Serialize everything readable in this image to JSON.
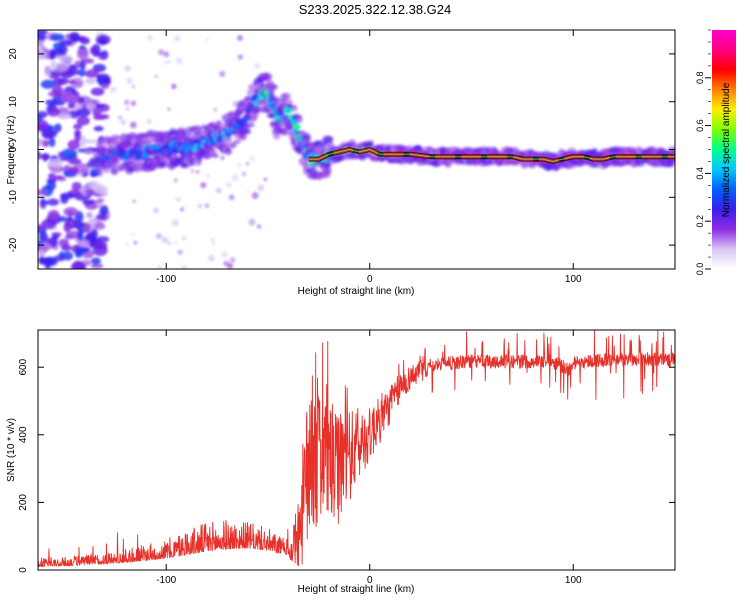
{
  "title": "S233.2025.322.12.38.G24",
  "chart_data": [
    {
      "type": "heatmap",
      "panel": "top",
      "xlabel": "Height of straight line (km)",
      "ylabel": "Frequency (Hz)",
      "xlim": [
        -163,
        150
      ],
      "ylim": [
        -25,
        25
      ],
      "xticks": [
        -100,
        0,
        100
      ],
      "yticks": [
        -20,
        -10,
        0,
        10,
        20
      ],
      "colorbar": {
        "label": "Normalized spectral amplitude",
        "range": [
          0,
          1
        ],
        "ticks": [
          0.0,
          0.2,
          0.4,
          0.6,
          0.8
        ],
        "tick_labels": [
          "0.0",
          "0.2",
          "0.4",
          "0.6",
          "0.8"
        ],
        "colormap": [
          "#ffffff",
          "#d9c8f5",
          "#8a2be2",
          "#3a1ef0",
          "#0060ff",
          "#00c8ff",
          "#00ff90",
          "#80ff00",
          "#ffee00",
          "#ff8000",
          "#ff0000",
          "#ff0080",
          "#ff00cc"
        ]
      },
      "ridge": {
        "x": [
          -133,
          -120,
          -110,
          -100,
          -90,
          -80,
          -70,
          -62,
          -58,
          -55,
          -50,
          -45,
          -40,
          -35,
          -30,
          -25,
          -20,
          -15,
          -10,
          -5,
          0,
          5,
          10,
          20,
          30,
          40,
          50,
          60,
          70,
          75,
          80,
          85,
          90,
          95,
          100,
          105,
          110,
          115,
          120,
          130,
          140,
          148
        ],
        "freq": [
          -1.5,
          -0.8,
          -0.5,
          0,
          0.5,
          1.5,
          3,
          6,
          9,
          11,
          12,
          6,
          8,
          3,
          -2,
          -2,
          -1,
          -0.5,
          0,
          -0.5,
          0,
          -1,
          -1,
          -1,
          -1.5,
          -1.5,
          -1.5,
          -1.5,
          -1.5,
          -2,
          -2,
          -2,
          -2.5,
          -2,
          -1.5,
          -1.5,
          -2,
          -2,
          -1.5,
          -1.5,
          -1.5,
          -1.5
        ],
        "amp": [
          0.25,
          0.3,
          0.3,
          0.3,
          0.35,
          0.35,
          0.35,
          0.3,
          0.35,
          0.4,
          0.45,
          0.4,
          0.4,
          0.45,
          0.4,
          0.45,
          0.5,
          0.55,
          0.6,
          0.65,
          0.6,
          0.7,
          0.8,
          0.85,
          0.9,
          0.9,
          0.9,
          0.85,
          0.85,
          0.9,
          0.9,
          0.85,
          0.85,
          0.9,
          0.9,
          0.85,
          0.9,
          0.9,
          0.9,
          0.85,
          0.85,
          0.85
        ]
      },
      "noise_region": {
        "x_range": [
          -163,
          -130
        ],
        "freq_range": [
          -25,
          25
        ]
      }
    },
    {
      "type": "line",
      "panel": "bottom",
      "xlabel": "Height of straight line (km)",
      "ylabel": "SNR (10 * v/v)",
      "xlim": [
        -163,
        150
      ],
      "ylim": [
        0,
        710
      ],
      "xticks": [
        -100,
        0,
        100
      ],
      "yticks": [
        0,
        200,
        400,
        600
      ],
      "series": [
        {
          "name": "SNR",
          "color": "#e8302a",
          "x": [
            -163,
            -150,
            -140,
            -130,
            -120,
            -110,
            -100,
            -90,
            -80,
            -70,
            -60,
            -50,
            -45,
            -40,
            -38,
            -35,
            -32,
            -30,
            -27,
            -25,
            -22,
            -20,
            -17,
            -15,
            -12,
            -10,
            -7,
            -5,
            -2,
            0,
            5,
            10,
            15,
            20,
            25,
            30,
            40,
            50,
            60,
            70,
            75,
            80,
            90,
            95,
            98,
            100,
            110,
            120,
            130,
            140,
            150
          ],
          "baseline": [
            10,
            12,
            15,
            18,
            22,
            28,
            35,
            45,
            55,
            62,
            65,
            58,
            50,
            45,
            60,
            120,
            220,
            300,
            330,
            350,
            360,
            330,
            290,
            300,
            330,
            340,
            350,
            370,
            390,
            400,
            440,
            490,
            540,
            570,
            590,
            600,
            610,
            615,
            615,
            615,
            615,
            615,
            615,
            600,
            590,
            610,
            618,
            620,
            622,
            622,
            620
          ],
          "spread": [
            12,
            12,
            14,
            16,
            18,
            22,
            25,
            35,
            40,
            40,
            35,
            30,
            25,
            20,
            60,
            150,
            260,
            300,
            300,
            280,
            260,
            240,
            220,
            200,
            180,
            170,
            150,
            130,
            110,
            100,
            90,
            70,
            55,
            45,
            40,
            40,
            40,
            40,
            40,
            40,
            40,
            40,
            40,
            40,
            40,
            40,
            40,
            40,
            40,
            40,
            40
          ]
        }
      ]
    }
  ]
}
